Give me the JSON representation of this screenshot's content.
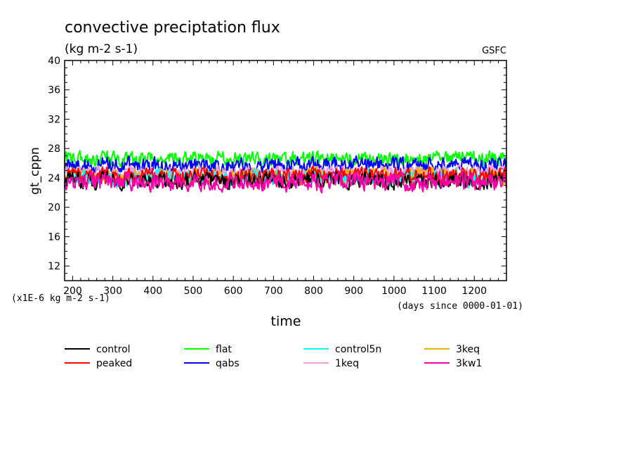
{
  "chart_data": {
    "type": "line",
    "title": "convective preciptation flux",
    "units": "(kg m-2 s-1)",
    "source_label": "GSFC",
    "ylabel": "gt_cppn",
    "xlabel": "time",
    "x_unit_note": "(days since 0000-01-01)",
    "y_scale_note": "(x1E-6 kg m-2 s-1)",
    "xlim": [
      180,
      1280
    ],
    "ylim": [
      10,
      40
    ],
    "x_ticks": [
      200,
      300,
      400,
      500,
      600,
      700,
      800,
      900,
      1000,
      1100,
      1200
    ],
    "y_ticks": [
      12,
      16,
      20,
      24,
      28,
      32,
      36,
      40
    ],
    "legend_position": "below",
    "series": [
      {
        "name": "control",
        "color": "#000000",
        "mean": 23.6,
        "amp": 1.0
      },
      {
        "name": "peaked",
        "color": "#ff0000",
        "mean": 24.4,
        "amp": 0.9
      },
      {
        "name": "flat",
        "color": "#00ff00",
        "mean": 26.6,
        "amp": 0.9
      },
      {
        "name": "qabs",
        "color": "#0000ff",
        "mean": 25.8,
        "amp": 0.9
      },
      {
        "name": "control5n",
        "color": "#00ffff",
        "mean": 24.0,
        "amp": 1.0
      },
      {
        "name": "1keq",
        "color": "#e8a0e0",
        "mean": 24.8,
        "amp": 0.8
      },
      {
        "name": "3keq",
        "color": "#f0b000",
        "mean": 24.2,
        "amp": 1.0
      },
      {
        "name": "3kw1",
        "color": "#ff00aa",
        "mean": 23.5,
        "amp": 1.1
      }
    ]
  }
}
